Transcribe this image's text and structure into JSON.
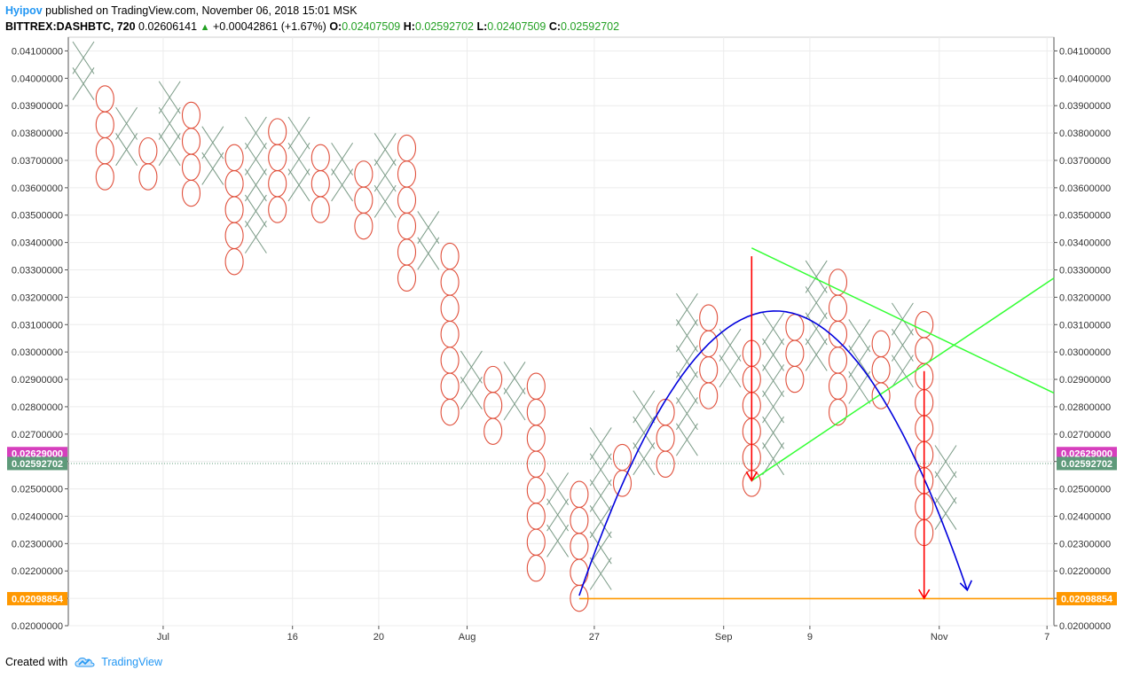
{
  "header": {
    "author": "Hyipov",
    "published": "published on TradingView.com, November 06, 2018 15:01 MSK"
  },
  "symbol_line": {
    "symbol": "BITTREX:DASHBTC, 720",
    "price": "0.02606141",
    "change": "+0.00042861 (+1.67%)",
    "o_label": "O:",
    "o_value": "0.02407509",
    "h_label": "H:",
    "h_value": "0.02592702",
    "l_label": "L:",
    "l_value": "0.02407509",
    "c_label": "C:",
    "c_value": "0.02592702"
  },
  "footer": {
    "created_with": "Created with",
    "brand": "TradingView"
  },
  "colors": {
    "x_mark": "#7a9a86",
    "o_mark": "#e0503c",
    "red_arrow": "#ff0000",
    "blue_curve": "#0000dd",
    "green_line": "#33ff33",
    "support_line": "#ff9800",
    "label_magenta": "#d63fbd",
    "label_green": "#5e9a7a",
    "label_orange": "#ff9800",
    "brand": "#2196f3"
  },
  "chart_data": {
    "type": "point-and-figure",
    "box_size": 0.00095,
    "y_range": [
      0.02,
      0.0415
    ],
    "y_ticks": [
      "0.02000000",
      "0.02100000",
      "0.02200000",
      "0.02300000",
      "0.02400000",
      "0.02500000",
      "0.02600000",
      "0.02700000",
      "0.02800000",
      "0.02900000",
      "0.03000000",
      "0.03100000",
      "0.03200000",
      "0.03300000",
      "0.03400000",
      "0.03500000",
      "0.03600000",
      "0.03700000",
      "0.03800000",
      "0.03900000",
      "0.04000000",
      "0.04100000"
    ],
    "x_ticks": [
      {
        "label": "Jul",
        "col": 3.7
      },
      {
        "label": "16",
        "col": 9.7
      },
      {
        "label": "20",
        "col": 13.7
      },
      {
        "label": "Aug",
        "col": 17.8
      },
      {
        "label": "27",
        "col": 23.7
      },
      {
        "label": "Sep",
        "col": 29.7
      },
      {
        "label": "9",
        "col": 33.7
      },
      {
        "label": "Nov",
        "col": 39.7
      },
      {
        "label": "7",
        "col": 44.7
      }
    ],
    "columns": [
      {
        "col": 0,
        "type": "X",
        "low": 0.0398,
        "high": 0.0403
      },
      {
        "col": 1,
        "type": "O",
        "low": 0.0364,
        "high": 0.0396
      },
      {
        "col": 2,
        "type": "X",
        "low": 0.0374,
        "high": 0.0383
      },
      {
        "col": 3,
        "type": "O",
        "low": 0.0364,
        "high": 0.0376
      },
      {
        "col": 4,
        "type": "X",
        "low": 0.0374,
        "high": 0.0389
      },
      {
        "col": 5,
        "type": "O",
        "low": 0.0358,
        "high": 0.0383
      },
      {
        "col": 6,
        "type": "X",
        "low": 0.0367,
        "high": 0.0377
      },
      {
        "col": 7,
        "type": "O",
        "low": 0.0333,
        "high": 0.037
      },
      {
        "col": 8,
        "type": "X",
        "low": 0.0342,
        "high": 0.0382
      },
      {
        "col": 9,
        "type": "O",
        "low": 0.0352,
        "high": 0.0376
      },
      {
        "col": 10,
        "type": "X",
        "low": 0.0361,
        "high": 0.0377
      },
      {
        "col": 11,
        "type": "O",
        "low": 0.0352,
        "high": 0.037
      },
      {
        "col": 12,
        "type": "X",
        "low": 0.0361,
        "high": 0.0369
      },
      {
        "col": 13,
        "type": "O",
        "low": 0.0346,
        "high": 0.0364
      },
      {
        "col": 14,
        "type": "X",
        "low": 0.0355,
        "high": 0.0376
      },
      {
        "col": 15,
        "type": "O",
        "low": 0.0327,
        "high": 0.037
      },
      {
        "col": 16,
        "type": "X",
        "low": 0.0336,
        "high": 0.0344
      },
      {
        "col": 17,
        "type": "O",
        "low": 0.0278,
        "high": 0.0339
      },
      {
        "col": 18,
        "type": "X",
        "low": 0.0285,
        "high": 0.0295
      },
      {
        "col": 19,
        "type": "O",
        "low": 0.0271,
        "high": 0.029
      },
      {
        "col": 20,
        "type": "X",
        "low": 0.0281,
        "high": 0.0295
      },
      {
        "col": 21,
        "type": "O",
        "low": 0.0221,
        "high": 0.029
      },
      {
        "col": 22,
        "type": "X",
        "low": 0.0231,
        "high": 0.0251
      },
      {
        "col": 23,
        "type": "O",
        "low": 0.021,
        "high": 0.0247
      },
      {
        "col": 24,
        "type": "X",
        "low": 0.0219,
        "high": 0.0268
      },
      {
        "col": 25,
        "type": "O",
        "low": 0.0252,
        "high": 0.0266
      },
      {
        "col": 26,
        "type": "X",
        "low": 0.0261,
        "high": 0.0282
      },
      {
        "col": 27,
        "type": "O",
        "low": 0.0259,
        "high": 0.0278
      },
      {
        "col": 28,
        "type": "X",
        "low": 0.0268,
        "high": 0.0312
      },
      {
        "col": 29,
        "type": "O",
        "low": 0.0284,
        "high": 0.0309
      },
      {
        "col": 30,
        "type": "X",
        "low": 0.0293,
        "high": 0.0302
      },
      {
        "col": 31,
        "type": "O",
        "low": 0.0252,
        "high": 0.0296
      },
      {
        "col": 32,
        "type": "X",
        "low": 0.0261,
        "high": 0.0312
      },
      {
        "col": 33,
        "type": "O",
        "low": 0.029,
        "high": 0.0309
      },
      {
        "col": 34,
        "type": "X",
        "low": 0.0299,
        "high": 0.0324
      },
      {
        "col": 35,
        "type": "O",
        "low": 0.0278,
        "high": 0.0321
      },
      {
        "col": 36,
        "type": "X",
        "low": 0.0287,
        "high": 0.0305
      },
      {
        "col": 37,
        "type": "O",
        "low": 0.0284,
        "high": 0.0302
      },
      {
        "col": 38,
        "type": "X",
        "low": 0.0293,
        "high": 0.0312
      },
      {
        "col": 39,
        "type": "O",
        "low": 0.0234,
        "high": 0.0309
      },
      {
        "col": 40,
        "type": "X",
        "low": 0.0241,
        "high": 0.0256
      }
    ],
    "price_labels": [
      {
        "value": 0.02629,
        "text": "0.02629000",
        "color": "label_magenta"
      },
      {
        "value": 0.02592702,
        "text": "0.02592702",
        "color": "label_green"
      },
      {
        "value": 0.02098854,
        "text": "0.02098854",
        "color": "label_orange"
      }
    ],
    "drawings": {
      "support_line": {
        "from": {
          "col": 23,
          "value": 0.02098854
        },
        "to": {
          "col": 45.3,
          "value": 0.02098854
        }
      },
      "green_lines": [
        {
          "from": {
            "col": 31,
            "value": 0.0338
          },
          "to": {
            "col": 45.3,
            "value": 0.0285
          }
        },
        {
          "from": {
            "col": 31,
            "value": 0.0253
          },
          "to": {
            "col": 45.3,
            "value": 0.0327
          }
        }
      ],
      "red_arrows": [
        {
          "col": 31,
          "from": 0.0335,
          "to": 0.0253
        },
        {
          "col": 39,
          "from": 0.0293,
          "to": 0.021
        }
      ],
      "blue_arc": {
        "start": {
          "col": 23,
          "value": 0.0211
        },
        "apex": {
          "col": 32.1,
          "value": 0.0315
        },
        "end": {
          "col": 41,
          "value": 0.0213
        }
      }
    }
  }
}
